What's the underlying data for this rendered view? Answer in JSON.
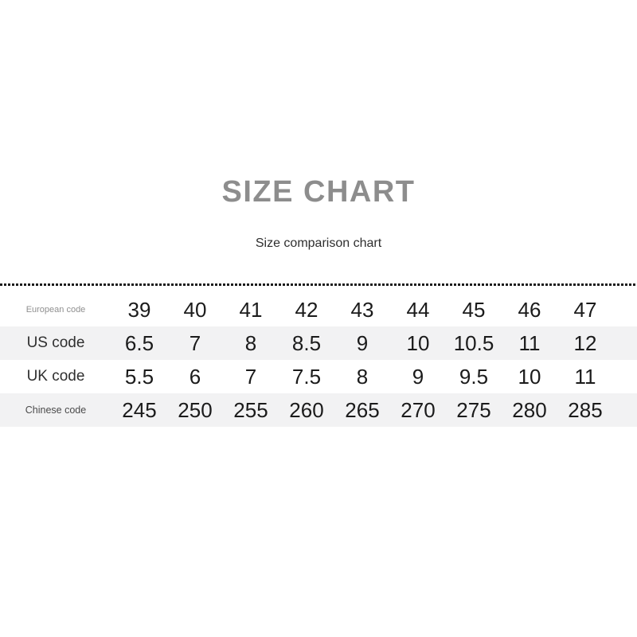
{
  "header": {
    "title": "SIZE CHART",
    "subtitle": "Size comparison chart"
  },
  "colors": {
    "background": "#ffffff",
    "title_gray": "#8d8d8d",
    "subtitle_dark": "#2e2e2e",
    "divider_dark": "#1c1c1c",
    "shaded_row_gray": "#f2f2f3",
    "value_text_dark": "#1b1b1b",
    "label_muted_gray": "#8f8f8f"
  },
  "chart_data": {
    "type": "table",
    "title": "SIZE CHART",
    "subtitle": "Size comparison chart",
    "layout": {
      "columns_per_row": 9,
      "divider_style": "dashed",
      "shaded_rows": [
        "US code",
        "Chinese code"
      ]
    },
    "rows": [
      {
        "label": "European code",
        "values": [
          "39",
          "40",
          "41",
          "42",
          "43",
          "44",
          "45",
          "46",
          "47"
        ]
      },
      {
        "label": "US code",
        "values": [
          "6.5",
          "7",
          "8",
          "8.5",
          "9",
          "10",
          "10.5",
          "11",
          "12"
        ]
      },
      {
        "label": "UK code",
        "values": [
          "5.5",
          "6",
          "7",
          "7.5",
          "8",
          "9",
          "9.5",
          "10",
          "11"
        ]
      },
      {
        "label": "Chinese code",
        "values": [
          "245",
          "250",
          "255",
          "260",
          "265",
          "270",
          "275",
          "280",
          "285"
        ]
      }
    ]
  }
}
